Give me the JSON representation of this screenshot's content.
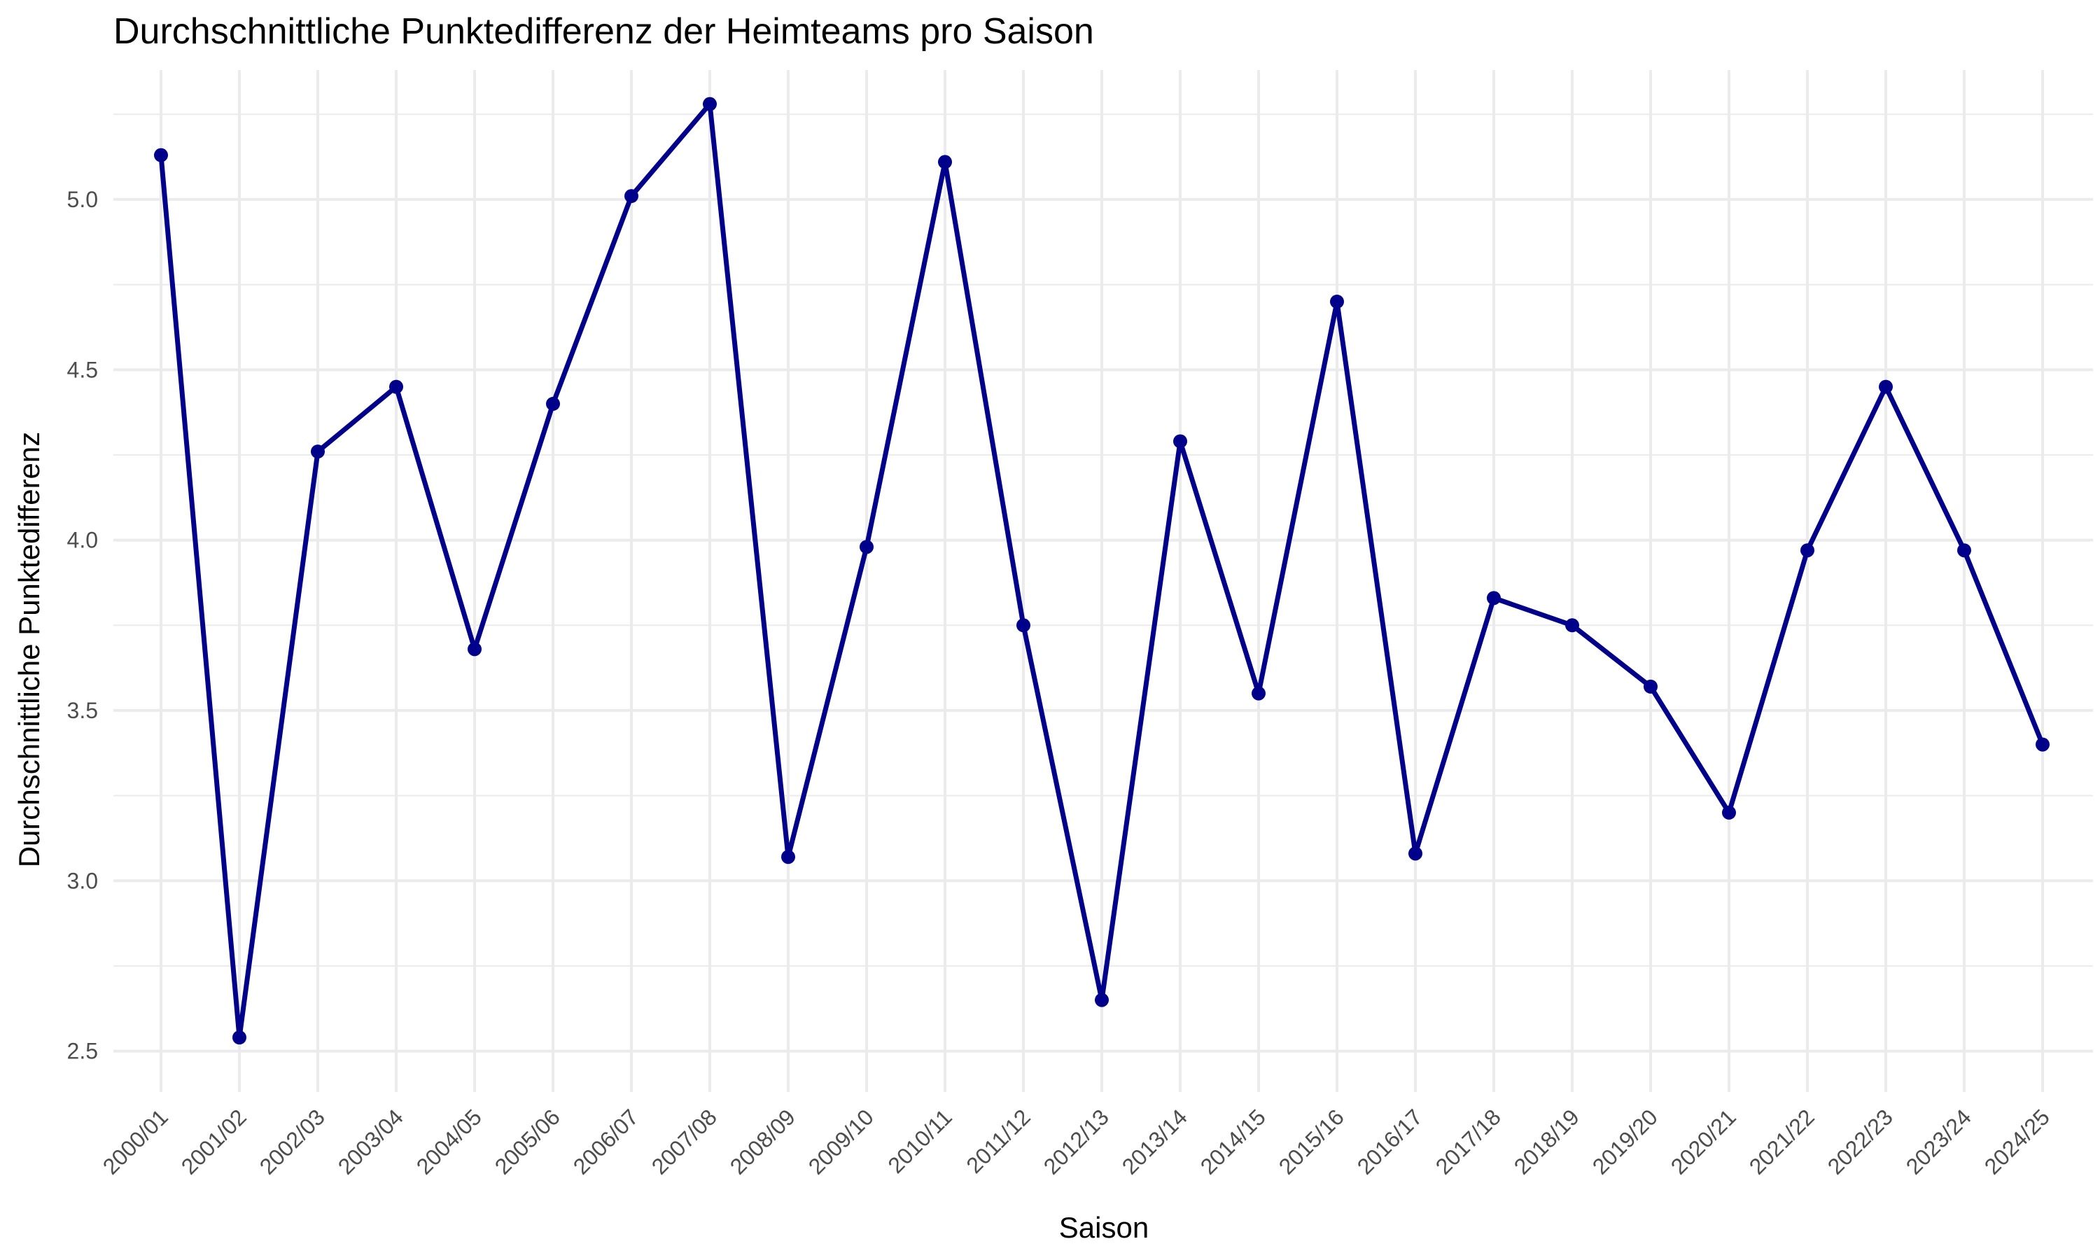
{
  "chart_data": {
    "type": "line",
    "title": "Durchschnittliche Punktedifferenz der Heimteams pro Saison",
    "xlabel": "Saison",
    "ylabel": "Durchschnittliche Punktedifferenz",
    "categories": [
      "2000/01",
      "2001/02",
      "2002/03",
      "2003/04",
      "2004/05",
      "2005/06",
      "2006/07",
      "2007/08",
      "2008/09",
      "2009/10",
      "2010/11",
      "2011/12",
      "2012/13",
      "2013/14",
      "2014/15",
      "2015/16",
      "2016/17",
      "2017/18",
      "2018/19",
      "2019/20",
      "2020/21",
      "2021/22",
      "2022/23",
      "2023/24",
      "2024/25"
    ],
    "series": [
      {
        "name": "Durchschnittliche Punktedifferenz",
        "values": [
          5.13,
          2.54,
          4.26,
          4.45,
          3.68,
          4.4,
          5.01,
          5.28,
          3.07,
          3.98,
          5.11,
          3.75,
          2.65,
          4.29,
          3.55,
          4.7,
          3.08,
          3.83,
          3.75,
          3.57,
          3.2,
          3.97,
          4.45,
          3.97,
          3.4
        ]
      }
    ],
    "ylim": [
      2.38,
      5.38
    ],
    "yticks": [
      2.5,
      3.0,
      3.5,
      4.0,
      4.5,
      5.0
    ],
    "ytick_labels": [
      "2.5",
      "3.0",
      "3.5",
      "4.0",
      "4.5",
      "5.0"
    ],
    "grid": true,
    "line_color": "#00008b",
    "grid_color": "#ebebeb",
    "tick_color": "#4d4d4d"
  }
}
